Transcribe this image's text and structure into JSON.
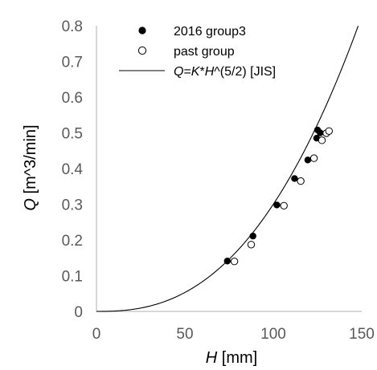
{
  "chart_data": {
    "type": "scatter",
    "xlim": [
      0,
      150
    ],
    "ylim": [
      0,
      0.8
    ],
    "x_ticks": [
      "0",
      "50",
      "100",
      "150"
    ],
    "y_ticks": [
      "0",
      "0.1",
      "0.2",
      "0.3",
      "0.4",
      "0.5",
      "0.6",
      "0.7",
      "0.8"
    ],
    "xlabel": {
      "var": "H",
      "unit": " [mm]"
    },
    "ylabel": {
      "var": "Q",
      "unit": " [m^3/min]"
    },
    "grid": false,
    "legend_position": "top-left",
    "series": [
      {
        "name": "2016 group3",
        "marker": "filled-circle",
        "color": "#000000",
        "points": [
          [
            74,
            0.141
          ],
          [
            88.5,
            0.211
          ],
          [
            102,
            0.298
          ],
          [
            112,
            0.372
          ],
          [
            119.5,
            0.424
          ],
          [
            124.5,
            0.485
          ],
          [
            125,
            0.508
          ],
          [
            126.5,
            0.5
          ]
        ]
      },
      {
        "name": "past group",
        "marker": "open-circle",
        "color": "#000000",
        "points": [
          [
            78,
            0.14
          ],
          [
            87.5,
            0.187
          ],
          [
            106,
            0.296
          ],
          [
            115.5,
            0.365
          ],
          [
            123,
            0.429
          ],
          [
            127.5,
            0.479
          ],
          [
            130,
            0.499
          ],
          [
            131.5,
            0.505
          ]
        ]
      },
      {
        "name": "Q=K*H^(5/2) [JIS]",
        "name_parts": [
          {
            "text": "Q",
            "italic": true
          },
          {
            "text": "=",
            "italic": false
          },
          {
            "text": "K",
            "italic": true
          },
          {
            "text": "*",
            "italic": false
          },
          {
            "text": "H",
            "italic": true
          },
          {
            "text": "^(5/2) [JIS]",
            "italic": false
          }
        ],
        "type": "line",
        "color": "#000000",
        "formula": {
          "coefficient": 3e-06,
          "exponent": 2.5
        }
      }
    ]
  }
}
